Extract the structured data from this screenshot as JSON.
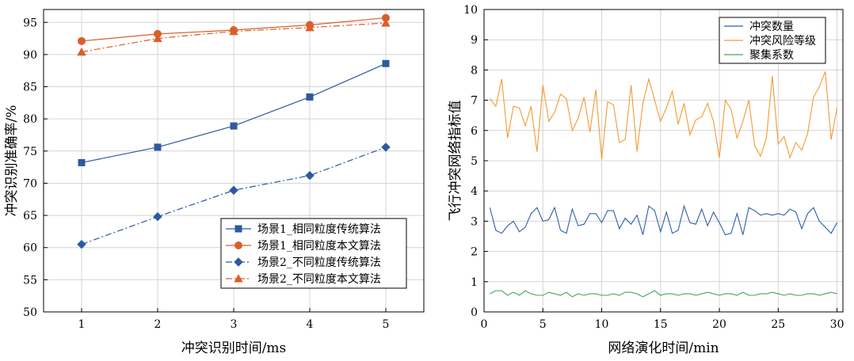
{
  "chart_data": [
    {
      "type": "line",
      "xlabel": "冲突识别时间/ms",
      "ylabel": "冲突识别准确率/%",
      "xlim": [
        0.5,
        5.5
      ],
      "ylim": [
        50,
        97
      ],
      "x_ticks": [
        "1",
        "2",
        "3",
        "4",
        "5"
      ],
      "y_ticks": [
        "50",
        "55",
        "60",
        "65",
        "70",
        "75",
        "80",
        "85",
        "90",
        "95"
      ],
      "grid": true,
      "legend_position": "bottom-right",
      "x": [
        1,
        2,
        3,
        4,
        5
      ],
      "series": [
        {
          "name": "场景1_相同粒度传统算法",
          "color": "#2c5aa0",
          "marker": "square",
          "dash": "solid",
          "values": [
            73.2,
            75.6,
            78.9,
            83.4,
            88.6
          ]
        },
        {
          "name": "场景1_相同粒度本文算法",
          "color": "#d95f2a",
          "marker": "circle",
          "dash": "solid",
          "values": [
            92.1,
            93.2,
            93.8,
            94.6,
            95.7
          ]
        },
        {
          "name": "场景2_不同粒度传统算法",
          "color": "#2c5aa0",
          "marker": "diamond",
          "dash": "dashdot",
          "values": [
            60.5,
            64.8,
            68.9,
            71.2,
            75.6
          ]
        },
        {
          "name": "场景2_不同粒度本文算法",
          "color": "#d95f2a",
          "marker": "triangle",
          "dash": "dashdot",
          "values": [
            90.4,
            92.5,
            93.6,
            94.2,
            94.9
          ]
        }
      ]
    },
    {
      "type": "line",
      "xlabel": "网络演化时间/min",
      "ylabel": "飞行冲突网络指标值",
      "xlim": [
        0,
        30.5
      ],
      "ylim": [
        0,
        10
      ],
      "x_ticks": [
        "0",
        "5",
        "10",
        "15",
        "20",
        "25",
        "30"
      ],
      "y_ticks": [
        "0",
        "1",
        "2",
        "3",
        "4",
        "5",
        "6",
        "7",
        "8",
        "9",
        "10"
      ],
      "grid": true,
      "legend_position": "top-right",
      "x": [
        0.5,
        1.0,
        1.5,
        2.0,
        2.5,
        3.0,
        3.5,
        4.0,
        4.5,
        5.0,
        5.5,
        6.0,
        6.5,
        7.0,
        7.5,
        8.0,
        8.5,
        9.0,
        9.5,
        10.0,
        10.5,
        11.0,
        11.5,
        12.0,
        12.5,
        13.0,
        13.5,
        14.0,
        14.5,
        15.0,
        15.5,
        16.0,
        16.5,
        17.0,
        17.5,
        18.0,
        18.5,
        19.0,
        19.5,
        20.0,
        20.5,
        21.0,
        21.5,
        22.0,
        22.5,
        23.0,
        23.5,
        24.0,
        24.5,
        25.0,
        25.5,
        26.0,
        26.5,
        27.0,
        27.5,
        28.0,
        28.5,
        29.0,
        29.5,
        30.0
      ],
      "series": [
        {
          "name": "冲突数量",
          "color": "#2f5fa8",
          "values": [
            3.45,
            2.7,
            2.6,
            2.85,
            3.0,
            2.65,
            2.8,
            3.25,
            3.45,
            3.0,
            3.05,
            3.45,
            2.7,
            2.6,
            3.4,
            2.85,
            2.9,
            3.25,
            3.25,
            2.95,
            3.35,
            3.35,
            2.75,
            3.1,
            2.9,
            3.2,
            2.55,
            3.5,
            3.35,
            2.65,
            3.3,
            2.6,
            2.7,
            3.5,
            2.95,
            2.9,
            3.4,
            2.85,
            3.3,
            2.95,
            2.55,
            2.6,
            3.25,
            2.55,
            3.45,
            3.35,
            3.2,
            3.25,
            3.2,
            3.25,
            3.2,
            3.4,
            3.3,
            2.75,
            3.25,
            3.45,
            3.0,
            2.8,
            2.6,
            2.95
          ]
        },
        {
          "name": "冲突风险等级",
          "color": "#f39a35",
          "values": [
            7.05,
            6.8,
            7.7,
            5.75,
            6.8,
            6.75,
            6.15,
            6.8,
            5.3,
            7.5,
            6.3,
            6.6,
            7.2,
            7.05,
            6.0,
            6.4,
            7.1,
            5.95,
            7.35,
            5.05,
            6.95,
            6.85,
            5.6,
            5.7,
            7.5,
            5.3,
            6.9,
            7.7,
            7.0,
            6.3,
            6.75,
            7.3,
            6.2,
            6.9,
            5.85,
            6.35,
            6.45,
            6.9,
            6.3,
            5.1,
            7.0,
            6.7,
            5.75,
            6.3,
            7.0,
            5.5,
            5.15,
            5.75,
            7.8,
            5.55,
            5.8,
            5.1,
            5.6,
            5.35,
            5.9,
            7.1,
            7.45,
            7.95,
            5.7,
            6.75
          ]
        },
        {
          "name": "聚集系数",
          "color": "#4aa35a",
          "values": [
            0.6,
            0.7,
            0.7,
            0.55,
            0.65,
            0.55,
            0.7,
            0.6,
            0.55,
            0.55,
            0.65,
            0.6,
            0.55,
            0.65,
            0.5,
            0.6,
            0.55,
            0.6,
            0.6,
            0.55,
            0.55,
            0.6,
            0.55,
            0.65,
            0.65,
            0.6,
            0.5,
            0.6,
            0.7,
            0.55,
            0.6,
            0.6,
            0.55,
            0.6,
            0.6,
            0.55,
            0.6,
            0.65,
            0.6,
            0.55,
            0.6,
            0.6,
            0.55,
            0.65,
            0.55,
            0.55,
            0.6,
            0.6,
            0.65,
            0.6,
            0.55,
            0.6,
            0.55,
            0.55,
            0.6,
            0.6,
            0.55,
            0.6,
            0.65,
            0.6
          ]
        }
      ]
    }
  ]
}
